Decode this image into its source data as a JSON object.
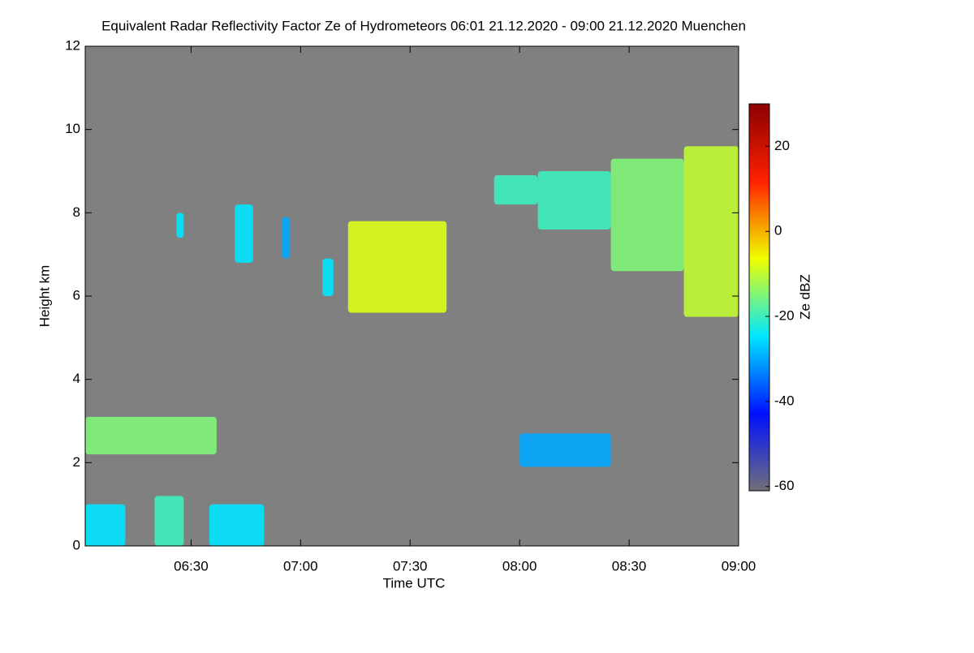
{
  "chart_data": {
    "type": "time-height",
    "title": "Equivalent Radar Reflectivity Factor Ze of Hydrometeors   06:01 21.12.2020 - 09:00 21.12.2020 Muenchen",
    "x_label": "Time UTC",
    "y_label": "Height km",
    "colorbar_label": "Ze dBZ",
    "background": "#808080",
    "xlim": [
      361,
      540
    ],
    "xticks": [
      {
        "value": 390,
        "label": "06:30"
      },
      {
        "value": 420,
        "label": "07:00"
      },
      {
        "value": 450,
        "label": "07:30"
      },
      {
        "value": 480,
        "label": "08:00"
      },
      {
        "value": 510,
        "label": "08:30"
      },
      {
        "value": 540,
        "label": "09:00"
      }
    ],
    "ylim": [
      0,
      12
    ],
    "yticks": [
      0,
      2,
      4,
      6,
      8,
      10,
      12
    ],
    "clim": [
      -61,
      30
    ],
    "cticks": [
      -60,
      -40,
      -20,
      0,
      20
    ],
    "colormap": [
      "#707078",
      "#0010ff",
      "#00e8ff",
      "#f0ff00",
      "#ff2000",
      "#8b0000"
    ],
    "cells": [
      {
        "x0": 361,
        "x1": 397,
        "base": 2.2,
        "top": 3.1,
        "ze": -15
      },
      {
        "x0": 361,
        "x1": 372,
        "base": 0,
        "top": 1.0,
        "ze": -25
      },
      {
        "x0": 380,
        "x1": 388,
        "base": 0,
        "top": 1.2,
        "ze": -20
      },
      {
        "x0": 395,
        "x1": 410,
        "base": 0,
        "top": 1.0,
        "ze": -25
      },
      {
        "x0": 386,
        "x1": 388,
        "base": 7.4,
        "top": 8.0,
        "ze": -25
      },
      {
        "x0": 402,
        "x1": 407,
        "base": 6.8,
        "top": 8.2,
        "ze": -25
      },
      {
        "x0": 415,
        "x1": 417,
        "base": 6.9,
        "top": 7.9,
        "ze": -30
      },
      {
        "x0": 426,
        "x1": 429,
        "base": 6.0,
        "top": 6.9,
        "ze": -25
      },
      {
        "x0": 433,
        "x1": 460,
        "base": 5.6,
        "top": 7.8,
        "ze": -8
      },
      {
        "x0": 473,
        "x1": 485,
        "base": 8.2,
        "top": 8.9,
        "ze": -20
      },
      {
        "x0": 485,
        "x1": 505,
        "base": 7.6,
        "top": 9.0,
        "ze": -20
      },
      {
        "x0": 505,
        "x1": 525,
        "base": 6.6,
        "top": 9.3,
        "ze": -15
      },
      {
        "x0": 525,
        "x1": 540,
        "base": 5.5,
        "top": 9.6,
        "ze": -10
      },
      {
        "x0": 480,
        "x1": 505,
        "base": 1.9,
        "top": 2.7,
        "ze": -30
      }
    ]
  }
}
